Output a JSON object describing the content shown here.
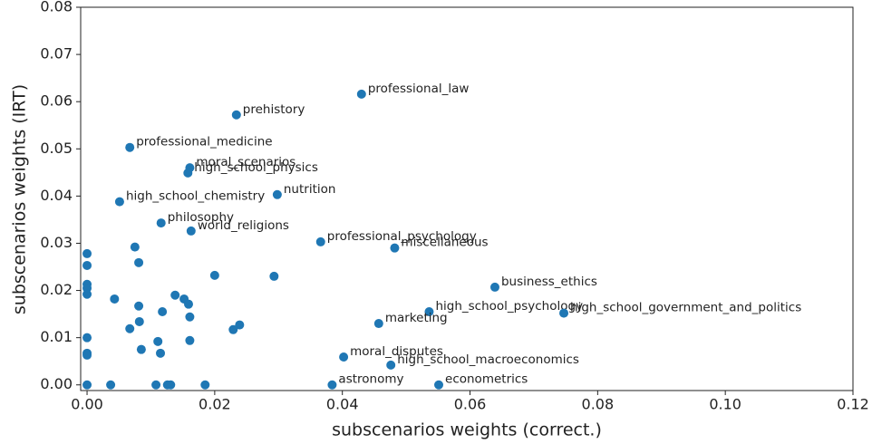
{
  "chart_data": {
    "type": "scatter",
    "xlabel": "subscenarios weights (correct.)",
    "ylabel": "subscenarios weights (IRT)",
    "color": "#1f77b4",
    "xlim": [
      -0.001,
      0.12
    ],
    "ylim": [
      -0.0012,
      0.08
    ],
    "xticks": [
      {
        "value": 0,
        "label": "0.00"
      },
      {
        "value": 0.02,
        "label": "0.02"
      },
      {
        "value": 0.04,
        "label": "0.04"
      },
      {
        "value": 0.06,
        "label": "0.06"
      },
      {
        "value": 0.08,
        "label": "0.08"
      },
      {
        "value": 0.1,
        "label": "0.10"
      },
      {
        "value": 0.12,
        "label": "0.12"
      }
    ],
    "yticks": [
      {
        "value": 0,
        "label": "0.00"
      },
      {
        "value": 0.01,
        "label": "0.01"
      },
      {
        "value": 0.02,
        "label": "0.02"
      },
      {
        "value": 0.03,
        "label": "0.03"
      },
      {
        "value": 0.04,
        "label": "0.04"
      },
      {
        "value": 0.05,
        "label": "0.05"
      },
      {
        "value": 0.06,
        "label": "0.06"
      },
      {
        "value": 0.07,
        "label": "0.07"
      },
      {
        "value": 0.08,
        "label": "0.08"
      }
    ],
    "x": [
      0.043,
      0.0234,
      0.0067,
      0.0161,
      0.0158,
      0.0298,
      0.0051,
      0.0116,
      0.0163,
      0.0366,
      0.0482,
      0.0639,
      0.0536,
      0.0747,
      0.0457,
      0.0402,
      0.0476,
      0.0384,
      0.0551,
      0,
      0,
      0,
      0,
      0,
      0,
      0,
      0,
      0,
      0.0037,
      0.0075,
      0.0081,
      0.0043,
      0.0081,
      0.0138,
      0.0152,
      0.0159,
      0.0118,
      0.0161,
      0.0082,
      0.0067,
      0.0111,
      0.0161,
      0.0085,
      0.0115,
      0.02,
      0.0293,
      0.0239,
      0.0229,
      0.0108,
      0.0126,
      0.0131,
      0.0185
    ],
    "y": [
      0.0616,
      0.0572,
      0.0503,
      0.046,
      0.0449,
      0.0403,
      0.0388,
      0.0343,
      0.0326,
      0.0303,
      0.029,
      0.0207,
      0.0155,
      0.0152,
      0.013,
      0.0059,
      0.0042,
      0,
      0,
      0.0278,
      0.0253,
      0.0213,
      0.0205,
      0.0192,
      0.01,
      0.0067,
      0.0063,
      0,
      0,
      0.0292,
      0.0259,
      0.0182,
      0.0167,
      0.019,
      0.0182,
      0.0171,
      0.0155,
      0.0144,
      0.0134,
      0.0119,
      0.0092,
      0.0094,
      0.0075,
      0.0067,
      0.0232,
      0.023,
      0.0127,
      0.0117,
      0,
      0,
      0,
      0
    ],
    "labels": [
      "professional_law",
      "prehistory",
      "professional_medicine",
      "moral_scenarios",
      "high_school_physics",
      "nutrition",
      "high_school_chemistry",
      "philosophy",
      "world_religions",
      "professional_psychology",
      "miscellaneous",
      "business_ethics",
      "high_school_psychology",
      "high_school_government_and_politics",
      "marketing",
      "moral_disputes",
      "high_school_macroeconomics",
      "astronomy",
      "econometrics",
      null,
      null,
      null,
      null,
      null,
      null,
      null,
      null,
      null,
      null,
      null,
      null,
      null,
      null,
      null,
      null,
      null,
      null,
      null,
      null,
      null,
      null,
      null,
      null,
      null,
      null,
      null,
      null,
      null,
      null,
      null,
      null,
      null
    ]
  }
}
